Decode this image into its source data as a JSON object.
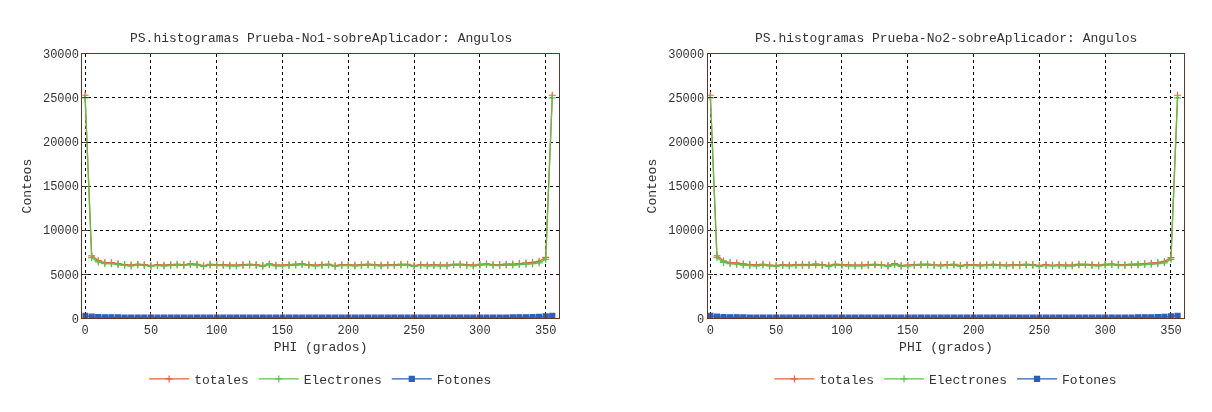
{
  "chart_data": [
    {
      "type": "line",
      "title": "PS.histogramas Prueba-No1-sobreAplicador: Angulos",
      "xlabel": "PHI (grados)",
      "ylabel": "Conteos",
      "x": [
        0,
        5,
        10,
        15,
        20,
        25,
        30,
        35,
        40,
        45,
        50,
        55,
        60,
        65,
        70,
        75,
        80,
        85,
        90,
        95,
        100,
        105,
        110,
        115,
        120,
        125,
        130,
        135,
        140,
        145,
        150,
        155,
        160,
        165,
        170,
        175,
        180,
        185,
        190,
        195,
        200,
        205,
        210,
        215,
        220,
        225,
        230,
        235,
        240,
        245,
        250,
        255,
        260,
        265,
        270,
        275,
        280,
        285,
        290,
        295,
        300,
        305,
        310,
        315,
        320,
        325,
        330,
        335,
        340,
        345,
        350,
        355
      ],
      "xlim": [
        -2,
        360
      ],
      "xticks": [
        0,
        50,
        100,
        150,
        200,
        250,
        300,
        350
      ],
      "ylim": [
        0,
        30000
      ],
      "yticks": [
        0,
        5000,
        10000,
        15000,
        20000,
        25000,
        30000
      ],
      "grid": true,
      "legend": "bottom",
      "line_style": "solid",
      "series": [
        {
          "name": "totales",
          "color": "#e8603c",
          "marker": "cross",
          "values": [
            25300,
            7100,
            6550,
            6330,
            6320,
            6210,
            6100,
            6050,
            6140,
            6090,
            5980,
            6080,
            6030,
            6090,
            6130,
            6080,
            6180,
            6140,
            5980,
            6130,
            6080,
            6080,
            6030,
            6040,
            6080,
            6130,
            6080,
            5990,
            6180,
            6030,
            6030,
            6080,
            6140,
            6180,
            6080,
            6030,
            6080,
            6140,
            5980,
            6080,
            6080,
            6030,
            6080,
            6140,
            6080,
            6030,
            6080,
            6090,
            6130,
            6130,
            5980,
            6080,
            6030,
            6090,
            6030,
            6030,
            6130,
            6140,
            6080,
            6030,
            6130,
            6190,
            6090,
            6100,
            6150,
            6160,
            6220,
            6280,
            6350,
            6480,
            6920,
            25300
          ]
        },
        {
          "name": "Electrones",
          "color": "#5fc14a",
          "marker": "cross",
          "values": [
            25000,
            6900,
            6400,
            6200,
            6200,
            6100,
            6000,
            5950,
            6050,
            6000,
            5900,
            6000,
            5950,
            6000,
            6050,
            6000,
            6100,
            6050,
            5900,
            6050,
            6000,
            6000,
            5950,
            5950,
            6000,
            6050,
            6000,
            5900,
            6100,
            5950,
            5950,
            6000,
            6050,
            6100,
            6000,
            5950,
            6000,
            6050,
            5900,
            6000,
            6000,
            5950,
            6000,
            6050,
            6000,
            5950,
            6000,
            6000,
            6050,
            6050,
            5900,
            6000,
            5950,
            6000,
            5950,
            5950,
            6050,
            6050,
            6000,
            5950,
            6050,
            6100,
            6000,
            6000,
            6050,
            6050,
            6100,
            6150,
            6200,
            6300,
            6700,
            25000
          ]
        },
        {
          "name": "Fotones",
          "color": "#2e5fb8",
          "marker": "square",
          "values": [
            300,
            200,
            150,
            130,
            120,
            110,
            100,
            100,
            90,
            90,
            90,
            80,
            80,
            90,
            80,
            80,
            80,
            90,
            80,
            80,
            80,
            80,
            80,
            90,
            80,
            80,
            80,
            90,
            80,
            80,
            80,
            80,
            90,
            80,
            80,
            80,
            80,
            90,
            80,
            80,
            90,
            80,
            80,
            90,
            80,
            80,
            80,
            90,
            80,
            80,
            80,
            80,
            80,
            90,
            80,
            80,
            80,
            90,
            80,
            80,
            80,
            90,
            90,
            100,
            100,
            110,
            120,
            130,
            150,
            180,
            220,
            300
          ]
        }
      ]
    },
    {
      "type": "line",
      "title": "PS.histogramas Prueba-No2-sobreAplicador: Angulos",
      "xlabel": "PHI (grados)",
      "ylabel": "Conteos",
      "x": [
        0,
        5,
        10,
        15,
        20,
        25,
        30,
        35,
        40,
        45,
        50,
        55,
        60,
        65,
        70,
        75,
        80,
        85,
        90,
        95,
        100,
        105,
        110,
        115,
        120,
        125,
        130,
        135,
        140,
        145,
        150,
        155,
        160,
        165,
        170,
        175,
        180,
        185,
        190,
        195,
        200,
        205,
        210,
        215,
        220,
        225,
        230,
        235,
        240,
        245,
        250,
        255,
        260,
        265,
        270,
        275,
        280,
        285,
        290,
        295,
        300,
        305,
        310,
        315,
        320,
        325,
        330,
        335,
        340,
        345,
        350,
        355
      ],
      "xlim": [
        -2,
        360
      ],
      "xticks": [
        0,
        50,
        100,
        150,
        200,
        250,
        300,
        350
      ],
      "ylim": [
        0,
        30000
      ],
      "yticks": [
        0,
        5000,
        10000,
        15000,
        20000,
        25000,
        30000
      ],
      "grid": true,
      "legend": "bottom",
      "line_style": "solid",
      "series": [
        {
          "name": "totales",
          "color": "#e8603c",
          "marker": "cross",
          "values": [
            25300,
            7100,
            6500,
            6330,
            6280,
            6180,
            6100,
            6080,
            6130,
            6050,
            6000,
            6080,
            6040,
            6100,
            6110,
            6080,
            6160,
            6090,
            6000,
            6140,
            6100,
            6060,
            6040,
            6050,
            6100,
            6120,
            6070,
            6000,
            6200,
            6000,
            6040,
            6090,
            6130,
            6140,
            6070,
            6050,
            6100,
            6120,
            6000,
            6080,
            6090,
            6030,
            6070,
            6130,
            6060,
            6040,
            6080,
            6100,
            6120,
            6100,
            6000,
            6090,
            6020,
            6070,
            6040,
            6050,
            6140,
            6120,
            6090,
            6040,
            6130,
            6170,
            6100,
            6080,
            6140,
            6150,
            6200,
            6260,
            6340,
            6460,
            6900,
            25300
          ]
        },
        {
          "name": "Electrones",
          "color": "#5fc14a",
          "marker": "cross",
          "values": [
            25000,
            6900,
            6350,
            6200,
            6150,
            6050,
            6000,
            5950,
            6050,
            5950,
            5900,
            6000,
            5950,
            6000,
            6000,
            6000,
            6050,
            6000,
            5900,
            6050,
            6000,
            5950,
            5950,
            5950,
            6000,
            6050,
            6000,
            5900,
            6100,
            5900,
            5950,
            6000,
            6050,
            6050,
            6000,
            5950,
            6000,
            6050,
            5900,
            6000,
            6000,
            5950,
            6000,
            6050,
            6000,
            5950,
            6000,
            6000,
            6050,
            6000,
            5900,
            6000,
            5950,
            6000,
            5950,
            5950,
            6050,
            6050,
            6000,
            5950,
            6050,
            6100,
            6000,
            6000,
            6050,
            6050,
            6100,
            6150,
            6200,
            6300,
            6700,
            25000
          ]
        },
        {
          "name": "Fotones",
          "color": "#2e5fb8",
          "marker": "square",
          "values": [
            300,
            200,
            150,
            130,
            120,
            110,
            100,
            100,
            90,
            90,
            90,
            80,
            80,
            90,
            80,
            80,
            80,
            90,
            80,
            80,
            80,
            80,
            80,
            90,
            80,
            80,
            80,
            90,
            80,
            80,
            80,
            80,
            90,
            80,
            80,
            80,
            80,
            90,
            80,
            80,
            90,
            80,
            80,
            90,
            80,
            80,
            80,
            90,
            80,
            80,
            80,
            80,
            80,
            90,
            80,
            80,
            80,
            90,
            80,
            80,
            80,
            90,
            90,
            100,
            100,
            110,
            120,
            130,
            150,
            180,
            220,
            300
          ]
        }
      ]
    }
  ]
}
